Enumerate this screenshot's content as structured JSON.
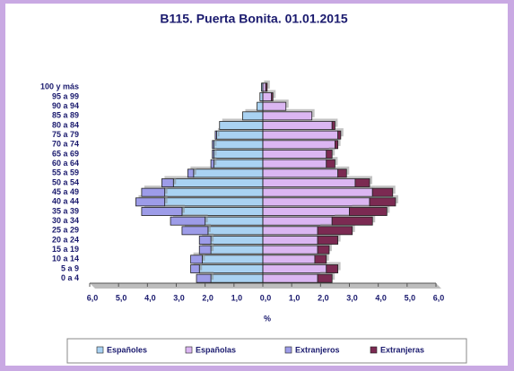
{
  "chart_data": {
    "type": "bar",
    "orientation": "horizontal",
    "stacked": true,
    "title": "B115. Puerta Bonita. 01.01.2015",
    "xlabel": "%",
    "categories": [
      "0 a 4",
      "5 a 9",
      "10 a 14",
      "15 a 19",
      "20 a 24",
      "25 a 29",
      "30 a 34",
      "35 a 39",
      "40 a 44",
      "45 a 49",
      "50 a 54",
      "55 a 59",
      "60 a 64",
      "65 a 69",
      "70 a 74",
      "75 a 79",
      "80 a 84",
      "85 a 89",
      "90 a 94",
      "95 a 99",
      "100 y más"
    ],
    "series": [
      {
        "name": "Españoles",
        "color": "#a9d2f2",
        "values": [
          -1.8,
          -2.2,
          -2.1,
          -1.8,
          -1.8,
          -1.9,
          -2.0,
          -2.8,
          -3.4,
          -3.4,
          -3.1,
          -2.4,
          -1.7,
          -1.7,
          -1.7,
          -1.6,
          -1.5,
          -0.7,
          -0.2,
          -0.1,
          -0.05
        ]
      },
      {
        "name": "Españolas",
        "color": "#dbb6f2",
        "values": [
          1.9,
          2.2,
          1.8,
          1.9,
          1.9,
          1.9,
          2.4,
          3.0,
          3.7,
          3.8,
          3.2,
          2.6,
          2.2,
          2.2,
          2.5,
          2.6,
          2.4,
          1.7,
          0.8,
          0.3,
          0.1
        ]
      },
      {
        "name": "Extranjeros",
        "color": "#9d9ce8",
        "values": [
          -0.5,
          -0.3,
          -0.4,
          -0.4,
          -0.4,
          -0.9,
          -1.2,
          -1.4,
          -1.0,
          -0.8,
          -0.4,
          -0.2,
          -0.1,
          -0.05,
          -0.05,
          -0.05,
          0,
          0,
          0,
          0,
          0
        ]
      },
      {
        "name": "Extranjeras",
        "color": "#7b2a52",
        "values": [
          0.5,
          0.4,
          0.4,
          0.4,
          0.7,
          1.2,
          1.4,
          1.3,
          0.9,
          0.7,
          0.5,
          0.3,
          0.3,
          0.2,
          0.1,
          0.1,
          0.1,
          0,
          0,
          0.05,
          0.05
        ]
      }
    ],
    "xlim": [
      -6,
      6
    ],
    "xticks": [
      {
        "value": -6,
        "label": "6,0"
      },
      {
        "value": -5,
        "label": "5,0"
      },
      {
        "value": -4,
        "label": "4,0"
      },
      {
        "value": -3,
        "label": "3,0"
      },
      {
        "value": -2,
        "label": "2,0"
      },
      {
        "value": -1,
        "label": "1,0"
      },
      {
        "value": 0,
        "label": "0,0"
      },
      {
        "value": 1,
        "label": "1,0"
      },
      {
        "value": 2,
        "label": "2,0"
      },
      {
        "value": 3,
        "label": "3,0"
      },
      {
        "value": 4,
        "label": "4,0"
      },
      {
        "value": 5,
        "label": "5,0"
      },
      {
        "value": 6,
        "label": "6,0"
      }
    ]
  }
}
